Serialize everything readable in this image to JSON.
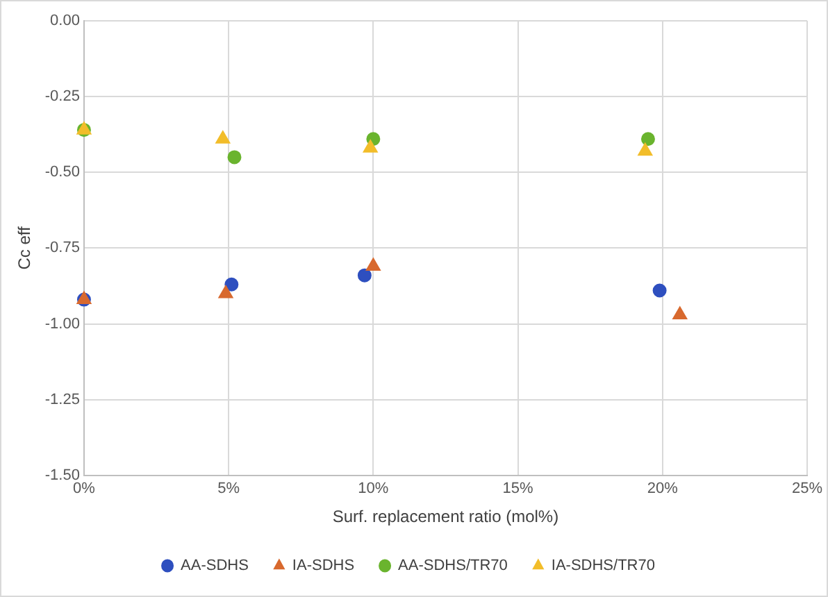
{
  "chart_data": {
    "type": "scatter",
    "xlabel": "Surf. replacement ratio (mol%)",
    "ylabel": "Cc eff",
    "xlim": [
      0,
      25
    ],
    "xticks": [
      {
        "value": 0,
        "label": "0%"
      },
      {
        "value": 5,
        "label": "5%"
      },
      {
        "value": 10,
        "label": "10%"
      },
      {
        "value": 15,
        "label": "15%"
      },
      {
        "value": 20,
        "label": "20%"
      },
      {
        "value": 25,
        "label": "25%"
      }
    ],
    "ylim": [
      -1.5,
      0
    ],
    "yticks": [
      {
        "value": -1.5,
        "label": "-1.50"
      },
      {
        "value": -1.25,
        "label": "-1.25"
      },
      {
        "value": -1,
        "label": "-1.00"
      },
      {
        "value": -0.75,
        "label": "-0.75"
      },
      {
        "value": -0.5,
        "label": "-0.50"
      },
      {
        "value": -0.25,
        "label": "-0.25"
      },
      {
        "value": 0,
        "label": "0.00"
      }
    ],
    "grid": true,
    "legend": "bottom",
    "series": [
      {
        "name": "AA-SDHS",
        "color": "#2e4fbf",
        "marker": "circle",
        "x": [
          0,
          5.1,
          9.7,
          19.9
        ],
        "values": [
          -0.92,
          -0.87,
          -0.84,
          -0.89
        ]
      },
      {
        "name": "IA-SDHS",
        "color": "#d8692e",
        "marker": "triangle",
        "x": [
          0,
          4.9,
          10,
          20.6
        ],
        "values": [
          -0.92,
          -0.9,
          -0.81,
          -0.97
        ]
      },
      {
        "name": "AA-SDHS/TR70",
        "color": "#6ab42e",
        "marker": "circle",
        "x": [
          0,
          5.2,
          10,
          19.5
        ],
        "values": [
          -0.36,
          -0.45,
          -0.39,
          -0.39
        ]
      },
      {
        "name": "IA-SDHS/TR70",
        "color": "#f2bd2a",
        "marker": "triangle",
        "x": [
          0,
          4.8,
          9.9,
          19.4
        ],
        "values": [
          -0.36,
          -0.39,
          -0.42,
          -0.43
        ]
      }
    ]
  }
}
